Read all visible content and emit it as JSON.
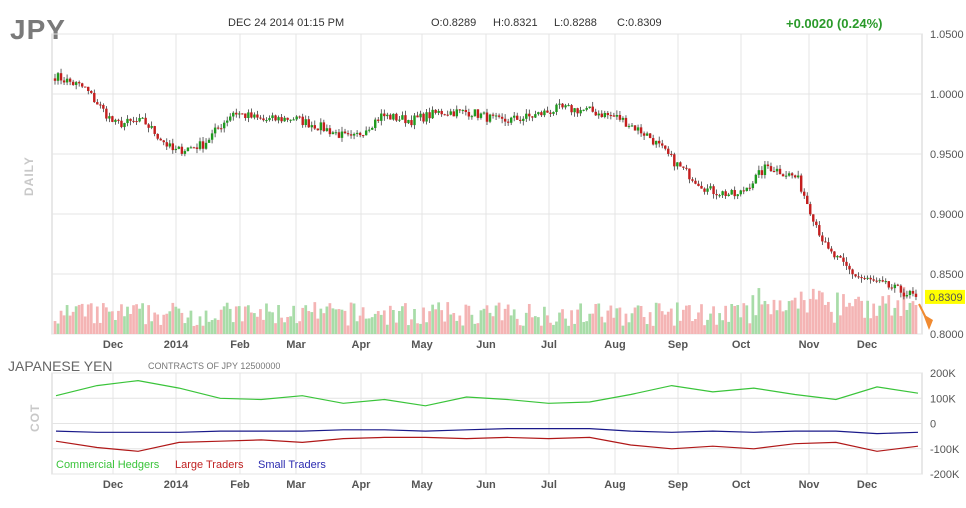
{
  "header": {
    "symbol": "JPY",
    "timestamp": "DEC 24 2014 01:15 PM",
    "open": "O:0.8289",
    "high": "H:0.8321",
    "low": "L:0.8288",
    "close": "C:0.8309",
    "change": "+0.0020 (0.24%)"
  },
  "price_panel": {
    "label": "DAILY",
    "last_price": "0.8309"
  },
  "cot_panel": {
    "label": "COT",
    "title": "JAPANESE YEN",
    "subtitle": "CONTRACTS OF JPY 12500000",
    "legend": {
      "commercial": "Commercial Hedgers",
      "large": "Large Traders",
      "small": "Small Traders"
    }
  },
  "colors": {
    "up": "#1f9a1f",
    "down": "#c41e1e",
    "vol_up": "#a8dca8",
    "vol_down": "#f4b4b4",
    "commercial": "#3ac43a",
    "large": "#b01818",
    "small": "#1a1a8a",
    "grid": "#e4e4e4",
    "last_bg": "#ffff00"
  },
  "chart_data": [
    {
      "type": "line",
      "title": "JPY",
      "ylim": [
        0.8,
        1.05
      ],
      "y_ticks": [
        "1.0500",
        "1.0000",
        "0.9500",
        "0.9000",
        "0.8500",
        "0.8000"
      ],
      "x_ticks": [
        "Dec",
        "2014",
        "Feb",
        "Mar",
        "Apr",
        "May",
        "Jun",
        "Jul",
        "Aug",
        "Sep",
        "Oct",
        "Nov",
        "Dec"
      ],
      "series": [
        {
          "name": "",
          "x": [
            "2013-11-11",
            "2013-11-25",
            "2013-12-09",
            "2013-12-23",
            "2014-01-06",
            "2014-01-20",
            "2014-02-03",
            "2014-02-17",
            "2014-03-03",
            "2014-03-17",
            "2014-03-31",
            "2014-04-14",
            "2014-04-28",
            "2014-05-12",
            "2014-05-26",
            "2014-06-09",
            "2014-06-23",
            "2014-07-07",
            "2014-07-21",
            "2014-08-04",
            "2014-08-18",
            "2014-09-01",
            "2014-09-15",
            "2014-09-29",
            "2014-10-13",
            "2014-10-27",
            "2014-11-10",
            "2014-11-24",
            "2014-12-08",
            "2014-12-24"
          ],
          "values": [
            1.015,
            1.005,
            0.975,
            0.977,
            0.952,
            0.958,
            0.985,
            0.978,
            0.98,
            0.972,
            0.962,
            0.982,
            0.978,
            0.985,
            0.985,
            0.977,
            0.981,
            0.988,
            0.986,
            0.98,
            0.965,
            0.94,
            0.92,
            0.915,
            0.94,
            0.93,
            0.87,
            0.848,
            0.84,
            0.831
          ]
        }
      ]
    },
    {
      "type": "line",
      "title": "JAPANESE YEN",
      "ylim": [
        -200000,
        200000
      ],
      "y_ticks": [
        "200K",
        "100K",
        "0",
        "-100K",
        "-200K"
      ],
      "x_ticks": [
        "Dec",
        "2014",
        "Feb",
        "Mar",
        "Apr",
        "May",
        "Jun",
        "Jul",
        "Aug",
        "Sep",
        "Oct",
        "Nov",
        "Dec"
      ],
      "series": [
        {
          "name": "Commercial Hedgers",
          "values": [
            110000,
            150000,
            170000,
            140000,
            100000,
            95000,
            110000,
            80000,
            95000,
            70000,
            105000,
            95000,
            80000,
            85000,
            115000,
            150000,
            125000,
            140000,
            115000,
            95000,
            145000,
            120000
          ]
        },
        {
          "name": "Large Traders",
          "values": [
            -70000,
            -95000,
            -110000,
            -75000,
            -70000,
            -65000,
            -75000,
            -60000,
            -55000,
            -55000,
            -60000,
            -55000,
            -60000,
            -55000,
            -85000,
            -100000,
            -90000,
            -100000,
            -80000,
            -75000,
            -110000,
            -90000
          ]
        },
        {
          "name": "Small Traders",
          "values": [
            -30000,
            -35000,
            -35000,
            -35000,
            -30000,
            -30000,
            -30000,
            -25000,
            -25000,
            -30000,
            -25000,
            -20000,
            -20000,
            -20000,
            -30000,
            -35000,
            -30000,
            -35000,
            -30000,
            -30000,
            -40000,
            -35000
          ]
        }
      ]
    }
  ]
}
